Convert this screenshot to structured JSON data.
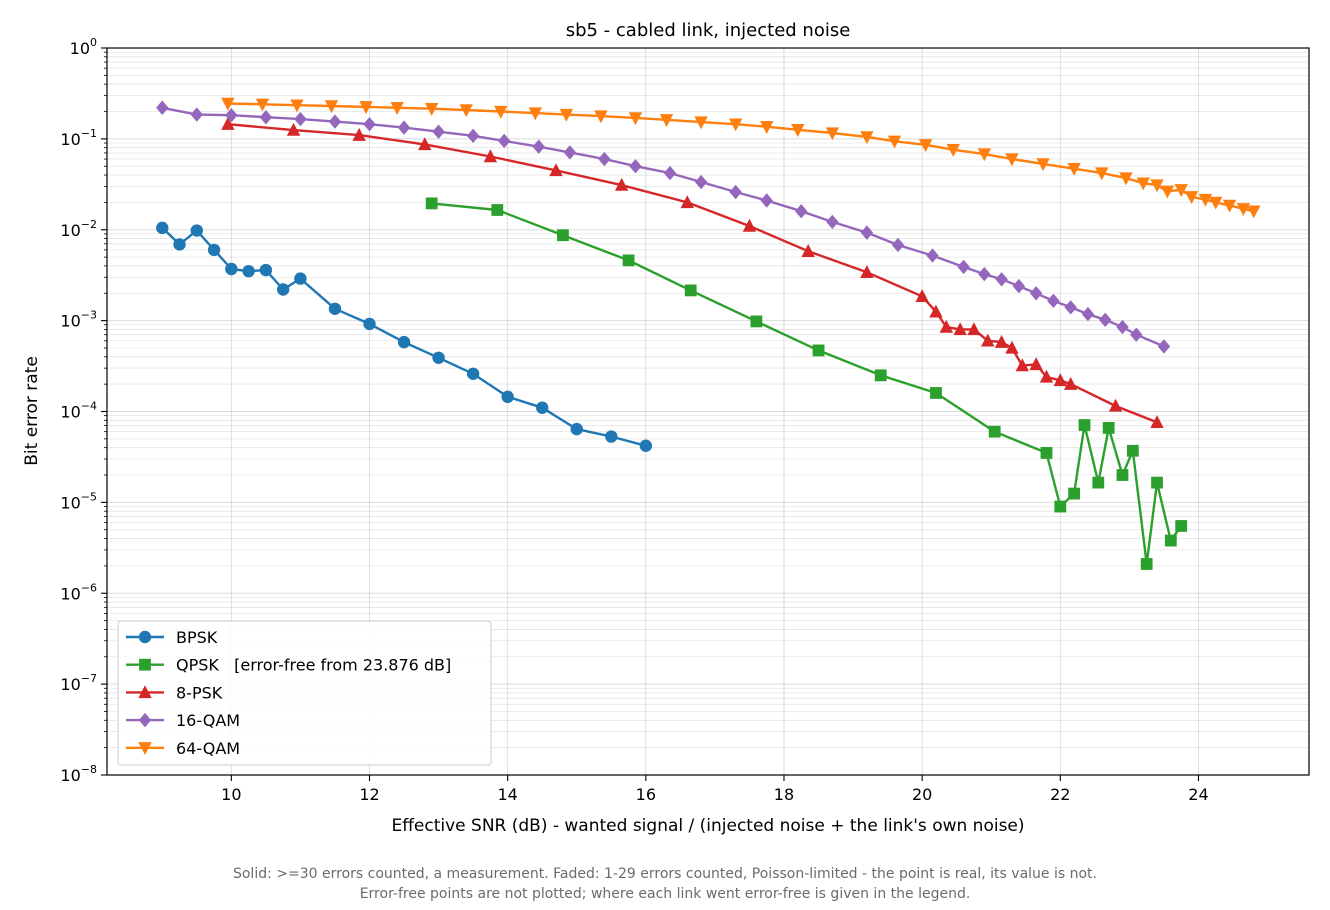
{
  "chart_data": {
    "type": "line",
    "title": "sb5 - cabled link, injected noise",
    "xlabel": "Effective SNR (dB)  -  wanted signal / (injected noise + the link's own noise)",
    "ylabel": "Bit error rate",
    "xlim": [
      8.2,
      25.6
    ],
    "ylim": [
      1e-08,
      1
    ],
    "yscale": "log",
    "xticks": [
      10,
      12,
      14,
      16,
      18,
      20,
      22,
      24
    ],
    "yticks": [
      {
        "base": "10",
        "exp": "0"
      },
      {
        "base": "10",
        "exp": "−1"
      },
      {
        "base": "10",
        "exp": "−2"
      },
      {
        "base": "10",
        "exp": "−3"
      },
      {
        "base": "10",
        "exp": "−4"
      },
      {
        "base": "10",
        "exp": "−5"
      },
      {
        "base": "10",
        "exp": "−6"
      },
      {
        "base": "10",
        "exp": "−7"
      },
      {
        "base": "10",
        "exp": "−8"
      }
    ],
    "grid": true,
    "legend_position": "lower-left",
    "series": [
      {
        "name": "BPSK",
        "color": "#1f77b4",
        "marker": "circle",
        "x": [
          9.0,
          9.25,
          9.5,
          9.75,
          10.0,
          10.25,
          10.5,
          10.75,
          11.0,
          11.5,
          12.0,
          12.5,
          13.0,
          13.5,
          14.0,
          14.5,
          15.0,
          15.5,
          16.0
        ],
        "y": [
          0.0105,
          0.0069,
          0.0098,
          0.006,
          0.0037,
          0.0035,
          0.0036,
          0.0022,
          0.0029,
          0.00135,
          0.00092,
          0.00058,
          0.00039,
          0.00026,
          0.000145,
          0.00011,
          6.4e-05,
          5.3e-05,
          4.2e-05
        ]
      },
      {
        "name": "QPSK   [error-free from 23.876 dB]",
        "color": "#2ca02c",
        "marker": "square",
        "x": [
          12.9,
          13.85,
          14.8,
          15.75,
          16.65,
          17.6,
          18.5,
          19.4,
          20.2,
          21.05,
          21.8,
          22.0,
          22.2,
          22.35,
          22.55,
          22.7,
          22.9,
          23.05,
          23.25,
          23.4,
          23.6,
          23.75
        ],
        "y": [
          0.0195,
          0.0165,
          0.0087,
          0.0046,
          0.00215,
          0.00098,
          0.00047,
          0.00025,
          0.00016,
          6e-05,
          3.5e-05,
          9e-06,
          1.25e-05,
          7.1e-05,
          1.65e-05,
          6.6e-05,
          2e-05,
          3.7e-05,
          2.1e-06,
          1.65e-05,
          3.8e-06,
          5.5e-06
        ]
      },
      {
        "name": "8-PSK",
        "color": "#d62728",
        "marker": "triangle-up",
        "x": [
          9.95,
          10.9,
          11.85,
          12.8,
          13.75,
          14.7,
          15.65,
          16.6,
          17.5,
          18.35,
          19.2,
          20.0,
          20.2,
          20.35,
          20.55,
          20.75,
          20.95,
          21.15,
          21.3,
          21.45,
          21.65,
          21.8,
          22.0,
          22.15,
          22.8,
          23.4
        ],
        "y": [
          0.145,
          0.125,
          0.11,
          0.087,
          0.064,
          0.045,
          0.031,
          0.02,
          0.011,
          0.0058,
          0.0034,
          0.00185,
          0.00125,
          0.00085,
          0.0008,
          0.0008,
          0.0006,
          0.00058,
          0.0005,
          0.00032,
          0.00033,
          0.00024,
          0.00022,
          0.0002,
          0.000115,
          7.6e-05
        ]
      },
      {
        "name": "16-QAM",
        "color": "#9467bd",
        "marker": "diamond",
        "x": [
          9.0,
          9.5,
          10.0,
          10.5,
          11.0,
          11.5,
          12.0,
          12.5,
          13.0,
          13.5,
          13.95,
          14.45,
          14.9,
          15.4,
          15.85,
          16.35,
          16.8,
          17.3,
          17.75,
          18.25,
          18.7,
          19.2,
          19.65,
          20.15,
          20.6,
          20.9,
          21.15,
          21.4,
          21.65,
          21.9,
          22.15,
          22.4,
          22.65,
          22.9,
          23.1,
          23.5
        ],
        "y": [
          0.22,
          0.185,
          0.182,
          0.173,
          0.165,
          0.155,
          0.145,
          0.133,
          0.12,
          0.108,
          0.095,
          0.082,
          0.071,
          0.06,
          0.05,
          0.042,
          0.0335,
          0.026,
          0.021,
          0.016,
          0.0122,
          0.0093,
          0.0068,
          0.0052,
          0.0039,
          0.00325,
          0.00285,
          0.0024,
          0.002,
          0.00165,
          0.0014,
          0.00118,
          0.00102,
          0.00085,
          0.0007,
          0.00052
        ]
      },
      {
        "name": "64-QAM",
        "color": "#ff7f0e",
        "marker": "triangle-down",
        "x": [
          9.95,
          10.45,
          10.95,
          11.45,
          11.95,
          12.4,
          12.9,
          13.4,
          13.9,
          14.4,
          14.85,
          15.35,
          15.85,
          16.3,
          16.8,
          17.3,
          17.75,
          18.2,
          18.7,
          19.2,
          19.6,
          20.05,
          20.45,
          20.9,
          21.3,
          21.75,
          22.2,
          22.6,
          22.95,
          23.2,
          23.4,
          23.55,
          23.75,
          23.9,
          24.1,
          24.25,
          24.45,
          24.65,
          24.8
        ],
        "y": [
          0.245,
          0.24,
          0.235,
          0.23,
          0.225,
          0.22,
          0.215,
          0.208,
          0.2,
          0.192,
          0.185,
          0.178,
          0.17,
          0.162,
          0.153,
          0.145,
          0.136,
          0.126,
          0.116,
          0.105,
          0.094,
          0.086,
          0.076,
          0.068,
          0.06,
          0.053,
          0.047,
          0.042,
          0.037,
          0.0325,
          0.031,
          0.0265,
          0.0275,
          0.023,
          0.0215,
          0.02,
          0.0185,
          0.017,
          0.016
        ]
      }
    ]
  },
  "footnotes": {
    "line1": "Solid: >=30 errors counted, a measurement.   Faded: 1-29 errors counted, Poisson-limited - the point is real, its value is not.",
    "line2": "Error-free points are not plotted; where each link went error-free is given in the legend."
  }
}
